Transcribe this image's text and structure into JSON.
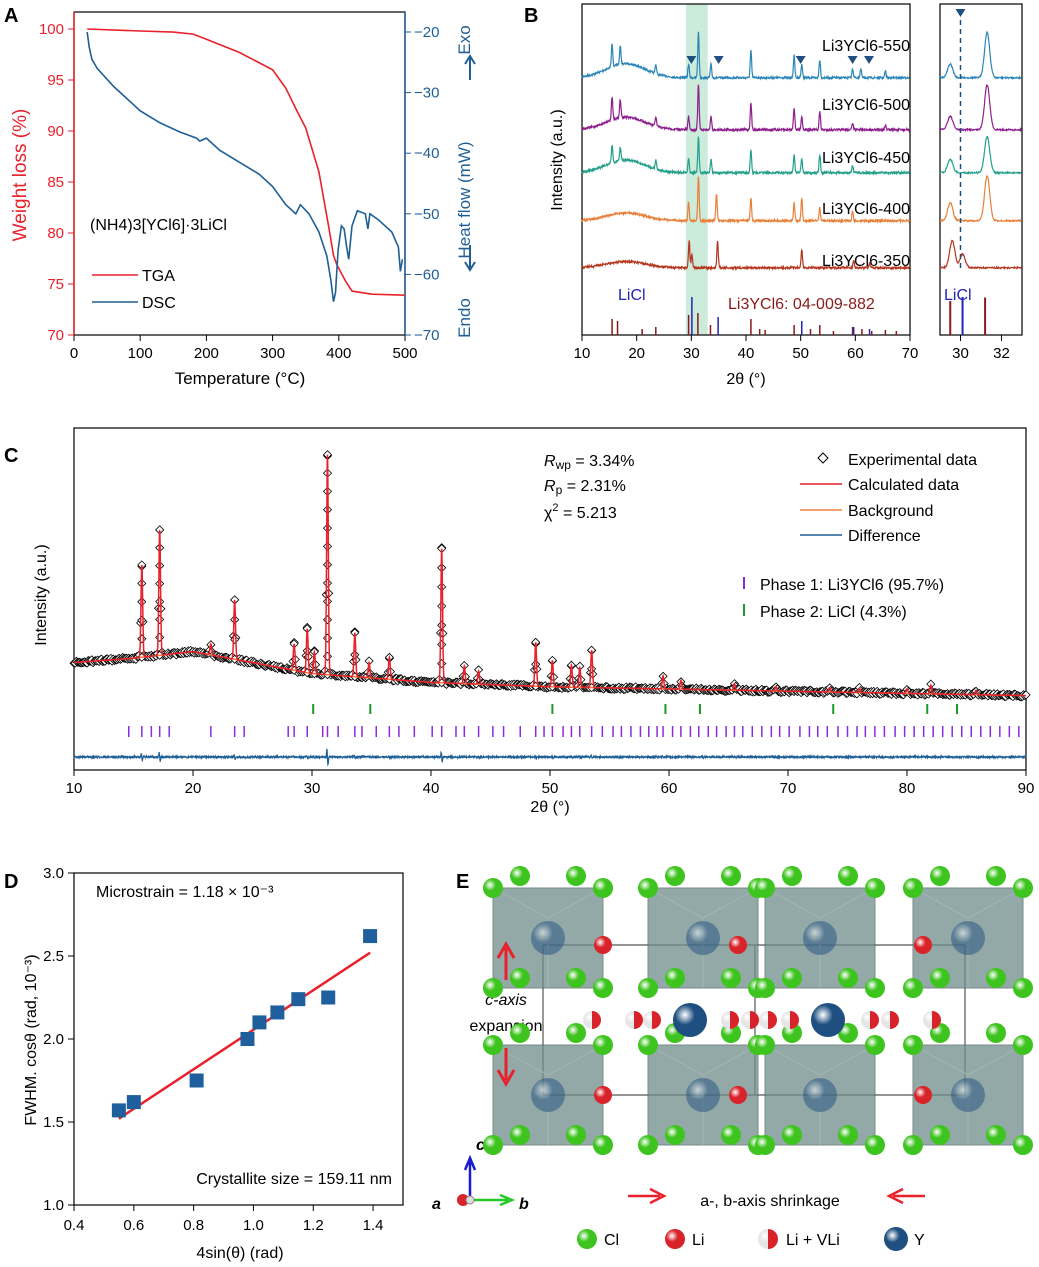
{
  "chart_data": [
    {
      "panel": "A",
      "type": "line",
      "xlabel": "Temperature (°C)",
      "ylabel": "Weight loss (%)",
      "y2label": "Heat flow (mW)",
      "exo_label": "Exo",
      "endo_label": "Endo",
      "annotation": "(NH4)3[YCl6]·3LiCl",
      "xlim": [
        0,
        500
      ],
      "ylim": [
        70,
        102
      ],
      "y2lim": [
        -70,
        -16
      ],
      "xticks": [
        0,
        100,
        200,
        300,
        400,
        500
      ],
      "yticks": [
        70,
        75,
        80,
        85,
        90,
        95,
        100
      ],
      "y2ticks": [
        -70,
        -60,
        -50,
        -40,
        -30,
        -20
      ],
      "legend": "bottom-left",
      "colors": {
        "TGA": "#e8212b",
        "DSC": "#1f5f96"
      },
      "series": [
        {
          "name": "TGA",
          "axis": "left",
          "x": [
            20,
            100,
            150,
            180,
            200,
            250,
            300,
            320,
            335,
            350,
            370,
            385,
            392,
            397,
            410,
            420,
            450,
            500
          ],
          "y": [
            100,
            99.8,
            99.7,
            99.5,
            99.0,
            97.7,
            96.0,
            94.2,
            92.2,
            90.3,
            86.0,
            80.5,
            77.8,
            76.9,
            75.3,
            74.3,
            74.0,
            73.9
          ]
        },
        {
          "name": "DSC",
          "axis": "right",
          "x": [
            20,
            23,
            27,
            35,
            60,
            100,
            130,
            160,
            185,
            190,
            200,
            220,
            250,
            280,
            300,
            320,
            335,
            342,
            355,
            370,
            382,
            388,
            392,
            395,
            399,
            404,
            408,
            412,
            415,
            420,
            428,
            440,
            444,
            447,
            460,
            480,
            490,
            493,
            496
          ],
          "y": [
            -20,
            -22.5,
            -24.5,
            -26,
            -29,
            -33,
            -35,
            -36.5,
            -37.5,
            -38,
            -37.5,
            -39.5,
            -41.5,
            -43.5,
            -45.5,
            -48.5,
            -50,
            -48.5,
            -50,
            -53,
            -57,
            -61,
            -64.5,
            -63,
            -56,
            -52,
            -52.5,
            -55.5,
            -57.5,
            -52,
            -49.5,
            -50,
            -52.5,
            -50,
            -51,
            -53,
            -55.5,
            -59.5,
            -57.5
          ]
        }
      ]
    },
    {
      "panel": "B",
      "type": "line",
      "xlabel": "2θ (°)",
      "ylabel": "Intensity (a.u.)",
      "xlim": [
        10,
        70
      ],
      "xticks": [
        10,
        20,
        30,
        40,
        50,
        60,
        70
      ],
      "inset_xlim": [
        29,
        33
      ],
      "inset_xticks": [
        30,
        32
      ],
      "highlight_range": [
        29,
        33
      ],
      "series": [
        {
          "name": "Li3YCl6-550",
          "color": "#2a86b8",
          "hump": 0.9,
          "peaks": [
            [
              15.5,
              0.5
            ],
            [
              17,
              0.4
            ],
            [
              23.5,
              0.2
            ],
            [
              29.5,
              0.3
            ],
            [
              31.3,
              1.0
            ],
            [
              33.6,
              0.3
            ],
            [
              40.9,
              0.6
            ],
            [
              48.8,
              0.5
            ],
            [
              50.2,
              0.3
            ],
            [
              53.5,
              0.4
            ],
            [
              59.5,
              0.2
            ],
            [
              61,
              0.2
            ],
            [
              65.5,
              0.15
            ]
          ]
        },
        {
          "name": "Li3YCl6-500",
          "color": "#8e1f8e",
          "hump": 0.8,
          "peaks": [
            [
              15.5,
              0.5
            ],
            [
              17,
              0.4
            ],
            [
              23.5,
              0.2
            ],
            [
              29.5,
              0.3
            ],
            [
              31.3,
              1.0
            ],
            [
              33.6,
              0.3
            ],
            [
              40.9,
              0.6
            ],
            [
              48.8,
              0.5
            ],
            [
              50.2,
              0.3
            ],
            [
              53.5,
              0.4
            ],
            [
              59.5,
              0.15
            ],
            [
              65.5,
              0.1
            ]
          ]
        },
        {
          "name": "Li3YCl6-450",
          "color": "#22a08a",
          "hump": 0.8,
          "peaks": [
            [
              15.5,
              0.4
            ],
            [
              17,
              0.3
            ],
            [
              23.5,
              0.2
            ],
            [
              29.5,
              0.3
            ],
            [
              31.3,
              0.8
            ],
            [
              33.6,
              0.3
            ],
            [
              40.9,
              0.5
            ],
            [
              48.8,
              0.4
            ],
            [
              50.2,
              0.3
            ],
            [
              53.5,
              0.4
            ],
            [
              59.5,
              0.15
            ]
          ]
        },
        {
          "name": "Li3YCl6-400",
          "color": "#e8803a",
          "hump": 0.5,
          "peaks": [
            [
              29.5,
              0.4
            ],
            [
              31.3,
              1.0
            ],
            [
              34.6,
              0.6
            ],
            [
              40.9,
              0.5
            ],
            [
              48.8,
              0.4
            ],
            [
              50.2,
              0.5
            ],
            [
              53.5,
              0.3
            ],
            [
              59.5,
              0.2
            ]
          ]
        },
        {
          "name": "Li3YCl6-350",
          "color": "#b5351e",
          "hump": 0.4,
          "peaks": [
            [
              29.6,
              0.6
            ],
            [
              30.1,
              0.3
            ],
            [
              34.8,
              0.6
            ],
            [
              50.2,
              0.4
            ],
            [
              59.7,
              0.15
            ],
            [
              62.6,
              0.1
            ]
          ]
        }
      ],
      "impurity_markers_550": [
        30,
        35,
        50,
        59.5,
        62.5
      ],
      "inset_marker": 30,
      "references": [
        {
          "name": "LiCl",
          "color": "#2424b4",
          "positions": [
            30.1,
            34.9,
            50.2,
            59.7,
            62.6
          ]
        },
        {
          "name": "Li3YCl6: 04-009-882",
          "color": "#8a1a1a",
          "positions": [
            15.5,
            16.5,
            21,
            23.5,
            29.5,
            31.2,
            33.5,
            40.9,
            42.5,
            43.5,
            48.8,
            50.2,
            51.8,
            53.5,
            56,
            59.5,
            61.2,
            63,
            65.5,
            67.5
          ]
        }
      ],
      "inset_label": "LiCl"
    },
    {
      "panel": "C",
      "type": "scatter",
      "xlabel": "2θ (°)",
      "ylabel": "Intensity (a.u.)",
      "xlim": [
        10,
        90
      ],
      "xticks": [
        10,
        20,
        30,
        40,
        50,
        60,
        70,
        80,
        90
      ],
      "stats": {
        "Rwp": "3.34%",
        "Rp": "2.31%",
        "chi2": "5.213"
      },
      "legend": "top-right",
      "series": [
        {
          "name": "Experimental data",
          "color": "#000000"
        },
        {
          "name": "Calculated data",
          "color": "#e8212b"
        },
        {
          "name": "Background",
          "color": "#f08040"
        },
        {
          "name": "Difference",
          "color": "#1f5f96"
        }
      ],
      "background": {
        "x": [
          10,
          15,
          20,
          25,
          30,
          40,
          50,
          60,
          70,
          80,
          90
        ],
        "y": [
          0.17,
          0.19,
          0.22,
          0.17,
          0.12,
          0.08,
          0.06,
          0.05,
          0.04,
          0.03,
          0.02
        ]
      },
      "peaks": [
        [
          15.7,
          0.42
        ],
        [
          17.2,
          0.57
        ],
        [
          21.5,
          0.05
        ],
        [
          23.5,
          0.27
        ],
        [
          28.5,
          0.12
        ],
        [
          29.6,
          0.2
        ],
        [
          30.2,
          0.1
        ],
        [
          31.3,
          1.0
        ],
        [
          33.6,
          0.2
        ],
        [
          34.8,
          0.07
        ],
        [
          36.5,
          0.1
        ],
        [
          40.9,
          0.61
        ],
        [
          42.8,
          0.08
        ],
        [
          44.0,
          0.06
        ],
        [
          48.8,
          0.2
        ],
        [
          50.2,
          0.12
        ],
        [
          51.8,
          0.1
        ],
        [
          52.5,
          0.09
        ],
        [
          53.5,
          0.17
        ],
        [
          59.5,
          0.06
        ],
        [
          61.0,
          0.04
        ],
        [
          65.5,
          0.03
        ],
        [
          69.0,
          0.02
        ],
        [
          73.5,
          0.02
        ],
        [
          76.0,
          0.02
        ],
        [
          80.0,
          0.02
        ],
        [
          82.0,
          0.04
        ],
        [
          85.8,
          0.02
        ]
      ],
      "phases": [
        {
          "name": "Phase 1: Li3YCl6 (95.7%)",
          "color": "#8a2be2",
          "positions": [
            14.6,
            15.7,
            16.5,
            17.2,
            18.0,
            21.5,
            23.5,
            24.3,
            28.0,
            28.5,
            29.6,
            30.9,
            31.3,
            32.2,
            33.6,
            34.2,
            35.4,
            36.5,
            37.3,
            38.6,
            40.1,
            40.9,
            42.1,
            42.8,
            44.0,
            45.2,
            46.1,
            47.5,
            48.8,
            49.5,
            50.2,
            51.1,
            51.8,
            52.5,
            53.5,
            54.4,
            55.3,
            56.0,
            56.8,
            57.6,
            58.3,
            59.0,
            59.5,
            60.3,
            61.0,
            61.8,
            62.5,
            63.3,
            64.0,
            64.8,
            65.5,
            66.2,
            67.0,
            67.8,
            68.6,
            69.3,
            70.1,
            71.0,
            71.8,
            72.5,
            73.3,
            74.2,
            75.0,
            75.8,
            76.5,
            77.3,
            78.1,
            79.0,
            79.8,
            80.6,
            81.4,
            82.2,
            83.0,
            83.8,
            84.6,
            85.4,
            86.2,
            87.0,
            87.8,
            88.6,
            89.4
          ]
        },
        {
          "name": "Phase 2: LiCl (4.3%)",
          "color": "#1a9a2a",
          "positions": [
            30.1,
            34.9,
            50.2,
            59.7,
            62.6,
            73.8,
            81.7,
            84.2
          ]
        }
      ]
    },
    {
      "panel": "D",
      "type": "scatter",
      "xlabel": "4sin(θ) (rad)",
      "ylabel": "FWHM. cosθ (rad, 10⁻³)",
      "xlim": [
        0.4,
        1.5
      ],
      "ylim": [
        1.0,
        3.0
      ],
      "xticks": [
        0.4,
        0.6,
        0.8,
        1.0,
        1.2,
        1.4
      ],
      "yticks": [
        1.0,
        1.5,
        2.0,
        2.5,
        3.0
      ],
      "annotation_top": "Microstrain = 1.18 × 10⁻³",
      "annotation_bottom": "Crystallite size = 159.11 nm",
      "colors": {
        "points": "#1f5f9e",
        "fit": "#e8212b"
      },
      "points": {
        "x": [
          0.55,
          0.6,
          0.81,
          0.98,
          1.02,
          1.08,
          1.15,
          1.25,
          1.39
        ],
        "y": [
          1.57,
          1.62,
          1.75,
          2.0,
          2.1,
          2.16,
          2.24,
          2.25,
          2.62
        ]
      },
      "fit": {
        "x": [
          0.55,
          1.39
        ],
        "y": [
          1.52,
          2.52
        ]
      }
    }
  ],
  "panel_e": {
    "label": "E",
    "c_axis_text": [
      "c-axis",
      "expansion"
    ],
    "ab_axis_text": "a-, b-axis shrinkage",
    "axes": {
      "a": "a",
      "b": "b",
      "c": "c"
    },
    "legend": [
      {
        "label": "Cl",
        "color": "#3ec41e"
      },
      {
        "label": "Li",
        "color": "#d8232a"
      },
      {
        "label": "Li + VLi",
        "color": "#d8232a"
      },
      {
        "label": "Y",
        "color": "#1f4f80"
      }
    ]
  },
  "panel_labels": [
    "A",
    "B",
    "C",
    "D"
  ]
}
